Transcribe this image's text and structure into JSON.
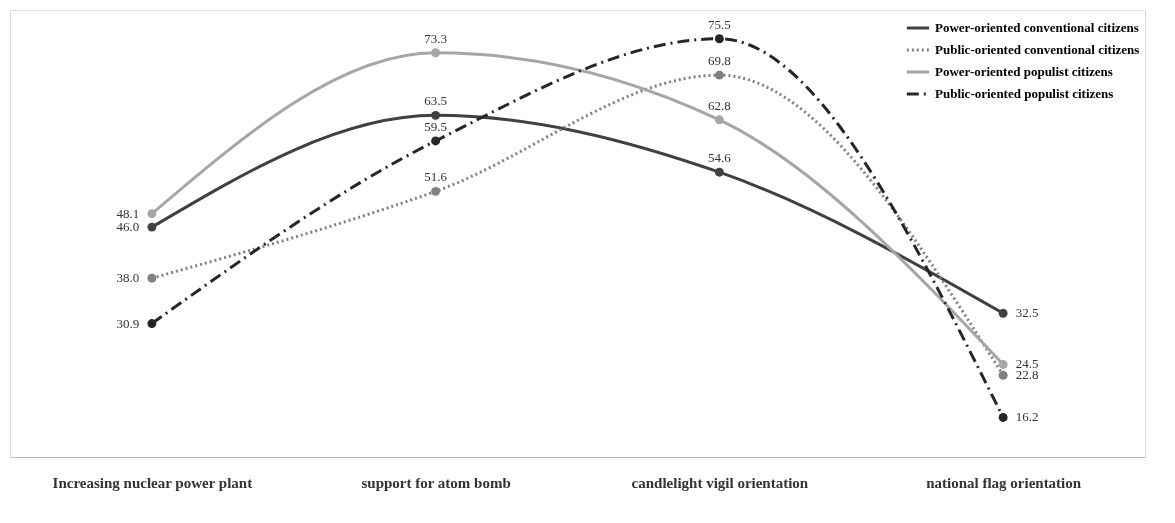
{
  "chart_data": {
    "type": "line",
    "categories": [
      "Increasing nuclear power plant",
      "support for atom bomb",
      "candlelight vigil orientation",
      "national flag orientation"
    ],
    "series": [
      {
        "name": "Power-oriented conventional citizens",
        "color": "#404040",
        "line_style": "solid",
        "values": [
          46.0,
          63.5,
          54.6,
          32.5
        ],
        "value_labels": [
          "46.0",
          "63.5",
          "54.6",
          "32.5"
        ]
      },
      {
        "name": "Public-oriented conventional citizens",
        "color": "#808080",
        "line_style": "dotted",
        "values": [
          38.0,
          51.6,
          69.8,
          22.8
        ],
        "value_labels": [
          "38.0",
          "51.6",
          "69.8",
          "22.8"
        ]
      },
      {
        "name": "Power-oriented populist citizens",
        "color": "#a6a6a6",
        "line_style": "solid",
        "values": [
          48.1,
          73.3,
          62.8,
          24.5
        ],
        "value_labels": [
          "48.1",
          "73.3",
          "62.8",
          "24.5"
        ]
      },
      {
        "name": "Public-oriented populist citizens",
        "color": "#262626",
        "line_style": "dashed",
        "values": [
          30.9,
          59.5,
          75.5,
          16.2
        ],
        "value_labels": [
          "30.9",
          "59.5",
          "75.5",
          "16.2"
        ]
      }
    ],
    "marker": "circle",
    "legend": "top right",
    "grid": false
  }
}
